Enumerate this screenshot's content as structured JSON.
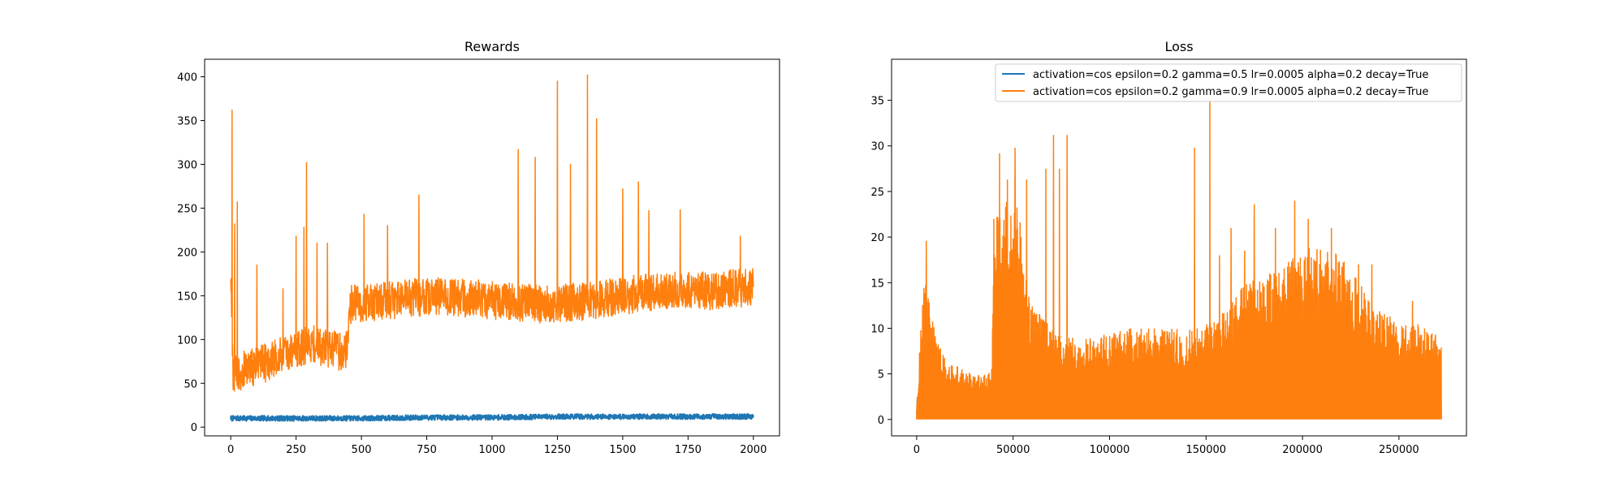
{
  "colors": {
    "series_1": "#1f77b4",
    "series_2": "#ff7f0e",
    "background": "#ffffff",
    "axes": "#000000"
  },
  "legend": {
    "location": "upper right of Loss panel",
    "entries": [
      "activation=cos epsilon=0.2 gamma=0.5 lr=0.0005 alpha=0.2 decay=True",
      "activation=cos epsilon=0.2 gamma=0.9 lr=0.0005 alpha=0.2 decay=True"
    ]
  },
  "chart_data": [
    {
      "type": "line",
      "title": "Rewards",
      "xlabel": "",
      "ylabel": "",
      "xlim": [
        -100,
        2100
      ],
      "ylim": [
        -10,
        420
      ],
      "xticks": [
        0,
        250,
        500,
        750,
        1000,
        1250,
        1500,
        1750,
        2000
      ],
      "yticks": [
        0,
        50,
        100,
        150,
        200,
        250,
        300,
        350,
        400
      ],
      "grid": false,
      "series": [
        {
          "name": "activation=cos epsilon=0.2 gamma=0.5 lr=0.0005 alpha=0.2 decay=True",
          "style": "noisy band",
          "x_range": [
            0,
            2000
          ],
          "key_points": [
            [
              0,
              10
            ],
            [
              250,
              10
            ],
            [
              500,
              10
            ],
            [
              750,
              11
            ],
            [
              1000,
              11
            ],
            [
              1250,
              12
            ],
            [
              1500,
              12
            ],
            [
              1750,
              12
            ],
            [
              2000,
              12
            ]
          ],
          "noise_amplitude": 3
        },
        {
          "name": "activation=cos epsilon=0.2 gamma=0.9 lr=0.0005 alpha=0.2 decay=True",
          "style": "noisy line with spikes",
          "x_range": [
            0,
            2000
          ],
          "key_points": [
            [
              0,
              180
            ],
            [
              8,
              60
            ],
            [
              50,
              65
            ],
            [
              150,
              75
            ],
            [
              300,
              95
            ],
            [
              440,
              85
            ],
            [
              460,
              140
            ],
            [
              600,
              145
            ],
            [
              800,
              150
            ],
            [
              1000,
              145
            ],
            [
              1200,
              140
            ],
            [
              1400,
              145
            ],
            [
              1600,
              155
            ],
            [
              1800,
              155
            ],
            [
              2000,
              160
            ]
          ],
          "noise_amplitude": 22,
          "spikes": [
            [
              5,
              362
            ],
            [
              15,
              232
            ],
            [
              25,
              257
            ],
            [
              100,
              185
            ],
            [
              200,
              158
            ],
            [
              250,
              218
            ],
            [
              280,
              228
            ],
            [
              290,
              302
            ],
            [
              330,
              210
            ],
            [
              370,
              210
            ],
            [
              510,
              243
            ],
            [
              600,
              230
            ],
            [
              720,
              265
            ],
            [
              1100,
              317
            ],
            [
              1165,
              308
            ],
            [
              1250,
              395
            ],
            [
              1300,
              300
            ],
            [
              1365,
              402
            ],
            [
              1400,
              352
            ],
            [
              1500,
              272
            ],
            [
              1560,
              280
            ],
            [
              1600,
              247
            ],
            [
              1720,
              248
            ],
            [
              1950,
              218
            ]
          ]
        }
      ]
    },
    {
      "type": "line",
      "title": "Loss",
      "xlabel": "",
      "ylabel": "",
      "xlim": [
        -13000,
        285000
      ],
      "ylim": [
        -1.8,
        39.5
      ],
      "xticks": [
        0,
        50000,
        100000,
        150000,
        200000,
        250000
      ],
      "yticks": [
        0,
        5,
        10,
        15,
        20,
        25,
        30,
        35
      ],
      "grid": false,
      "series": [
        {
          "name": "activation=cos epsilon=0.2 gamma=0.5 lr=0.0005 alpha=0.2 decay=True",
          "style": "short line",
          "points": [
            [
              0,
              0.5
            ],
            [
              300,
              2.2
            ],
            [
              700,
              1.2
            ],
            [
              1500,
              0.8
            ]
          ]
        },
        {
          "name": "activation=cos epsilon=0.2 gamma=0.9 lr=0.0005 alpha=0.2 decay=True",
          "style": "dense filled oscillation from 0",
          "x_range": [
            0,
            272000
          ],
          "envelope": [
            [
              0,
              2
            ],
            [
              1500,
              8
            ],
            [
              3000,
              13
            ],
            [
              4500,
              17
            ],
            [
              6000,
              14
            ],
            [
              9000,
              11
            ],
            [
              12000,
              8
            ],
            [
              16000,
              6
            ],
            [
              20000,
              6
            ],
            [
              25000,
              5.5
            ],
            [
              30000,
              5
            ],
            [
              35000,
              5
            ],
            [
              39000,
              6
            ],
            [
              40000,
              20
            ],
            [
              42000,
              23
            ],
            [
              45000,
              26
            ],
            [
              48000,
              22
            ],
            [
              52000,
              27
            ],
            [
              55000,
              18
            ],
            [
              58000,
              14
            ],
            [
              62000,
              12
            ],
            [
              66000,
              11
            ],
            [
              70000,
              10
            ],
            [
              80000,
              9
            ],
            [
              90000,
              9
            ],
            [
              100000,
              9.5
            ],
            [
              110000,
              10
            ],
            [
              120000,
              10
            ],
            [
              130000,
              10
            ],
            [
              140000,
              10
            ],
            [
              150000,
              10.5
            ],
            [
              160000,
              12
            ],
            [
              170000,
              15
            ],
            [
              180000,
              16
            ],
            [
              190000,
              17.5
            ],
            [
              200000,
              19
            ],
            [
              210000,
              19
            ],
            [
              220000,
              18
            ],
            [
              230000,
              15
            ],
            [
              240000,
              12
            ],
            [
              250000,
              11
            ],
            [
              260000,
              10.5
            ],
            [
              272000,
              9
            ]
          ],
          "spikes": [
            [
              5000,
              19.6
            ],
            [
              40000,
              22
            ],
            [
              43000,
              29.2
            ],
            [
              47000,
              26.3
            ],
            [
              51000,
              29.8
            ],
            [
              57000,
              26.3
            ],
            [
              67000,
              27.5
            ],
            [
              71000,
              31.2
            ],
            [
              74000,
              27.5
            ],
            [
              78000,
              31.2
            ],
            [
              144000,
              29.8
            ],
            [
              152000,
              35
            ],
            [
              157000,
              18
            ],
            [
              163000,
              21
            ],
            [
              170000,
              18.5
            ],
            [
              175000,
              23.6
            ],
            [
              186000,
              21
            ],
            [
              196000,
              24
            ],
            [
              203000,
              22
            ],
            [
              215000,
              21
            ],
            [
              229000,
              17
            ],
            [
              236000,
              17
            ],
            [
              257000,
              13
            ]
          ]
        }
      ]
    }
  ]
}
